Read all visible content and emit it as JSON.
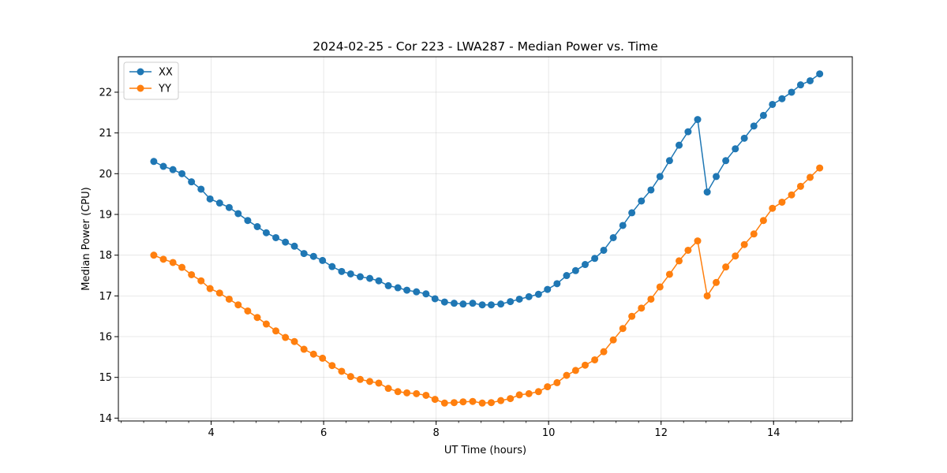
{
  "chart_data": {
    "type": "line",
    "title": "2024-02-25 - Cor 223 - LWA287 - Median Power vs. Time",
    "xlabel": "UT Time (hours)",
    "ylabel": "Median Power (CPU)",
    "xlim": [
      2.35,
      15.4
    ],
    "ylim": [
      13.93,
      22.87
    ],
    "xticks": [
      4,
      6,
      8,
      10,
      12,
      14
    ],
    "yticks": [
      14,
      15,
      16,
      17,
      18,
      19,
      20,
      21,
      22
    ],
    "x_minor_step": 0.4,
    "grid": true,
    "legend_position": "upper-left",
    "x": [
      2.98,
      3.15,
      3.32,
      3.48,
      3.65,
      3.82,
      3.98,
      4.15,
      4.32,
      4.48,
      4.65,
      4.82,
      4.98,
      5.15,
      5.32,
      5.48,
      5.65,
      5.82,
      5.98,
      6.15,
      6.32,
      6.48,
      6.65,
      6.82,
      6.98,
      7.15,
      7.32,
      7.48,
      7.65,
      7.82,
      7.98,
      8.15,
      8.32,
      8.48,
      8.65,
      8.82,
      8.98,
      9.15,
      9.32,
      9.48,
      9.65,
      9.82,
      9.98,
      10.15,
      10.32,
      10.48,
      10.65,
      10.82,
      10.98,
      11.15,
      11.32,
      11.48,
      11.65,
      11.82,
      11.98,
      12.15,
      12.32,
      12.48,
      12.65,
      12.82,
      12.98,
      13.15,
      13.32,
      13.48,
      13.65,
      13.82,
      13.98,
      14.15,
      14.32,
      14.48,
      14.65,
      14.82
    ],
    "series": [
      {
        "name": "XX",
        "color": "#1f77b4",
        "values": [
          20.3,
          20.18,
          20.1,
          20.0,
          19.8,
          19.62,
          19.38,
          19.28,
          19.17,
          19.02,
          18.85,
          18.7,
          18.55,
          18.43,
          18.32,
          18.22,
          18.04,
          17.97,
          17.87,
          17.72,
          17.6,
          17.54,
          17.47,
          17.43,
          17.37,
          17.25,
          17.2,
          17.14,
          17.1,
          17.05,
          16.93,
          16.85,
          16.82,
          16.8,
          16.82,
          16.78,
          16.78,
          16.8,
          16.86,
          16.92,
          16.98,
          17.04,
          17.16,
          17.3,
          17.5,
          17.62,
          17.77,
          17.92,
          18.12,
          18.43,
          18.73,
          19.04,
          19.33,
          19.6,
          19.93,
          20.32,
          20.7,
          21.03,
          21.33,
          19.55,
          19.93,
          20.32,
          20.61,
          20.87,
          21.17,
          21.43,
          21.7,
          21.84,
          22.0,
          22.18,
          22.28,
          22.45
        ]
      },
      {
        "name": "YY",
        "color": "#ff7f0e",
        "values": [
          18.0,
          17.9,
          17.82,
          17.7,
          17.52,
          17.37,
          17.18,
          17.07,
          16.92,
          16.78,
          16.63,
          16.47,
          16.31,
          16.14,
          15.98,
          15.88,
          15.69,
          15.57,
          15.47,
          15.29,
          15.15,
          15.02,
          14.95,
          14.9,
          14.86,
          14.73,
          14.65,
          14.62,
          14.6,
          14.56,
          14.46,
          14.37,
          14.38,
          14.4,
          14.41,
          14.37,
          14.38,
          14.43,
          14.48,
          14.57,
          14.6,
          14.65,
          14.77,
          14.87,
          15.05,
          15.17,
          15.3,
          15.43,
          15.63,
          15.92,
          16.2,
          16.5,
          16.7,
          16.92,
          17.22,
          17.53,
          17.86,
          18.12,
          18.35,
          17.0,
          17.33,
          17.71,
          17.98,
          18.26,
          18.52,
          18.85,
          19.15,
          19.3,
          19.48,
          19.69,
          19.91,
          20.14
        ]
      }
    ]
  }
}
